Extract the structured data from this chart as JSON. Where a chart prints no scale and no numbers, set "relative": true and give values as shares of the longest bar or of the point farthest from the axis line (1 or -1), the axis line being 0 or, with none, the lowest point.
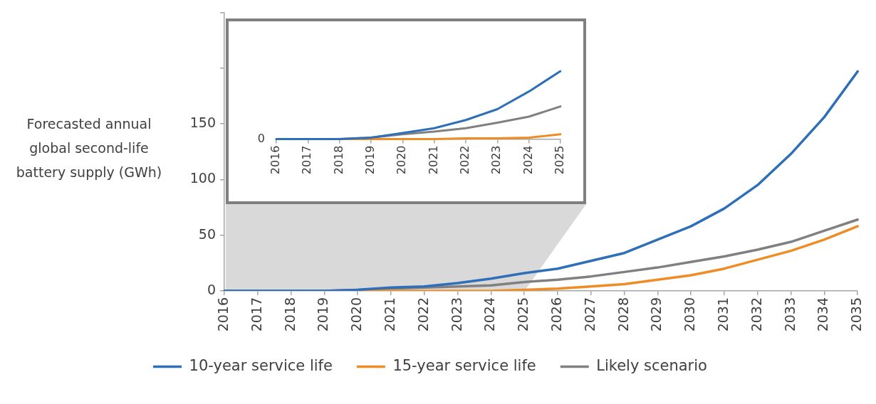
{
  "chart_data": [
    {
      "type": "line",
      "ylabel": "Forecasted annual global second-life battery supply (GWh)",
      "categories": [
        "2016",
        "2017",
        "2018",
        "2019",
        "2020",
        "2021",
        "2022",
        "2023",
        "2024",
        "2025",
        "2026",
        "2027",
        "2028",
        "2029",
        "2030",
        "2031",
        "2032",
        "2033",
        "2034",
        "2035"
      ],
      "series": [
        {
          "name": "10-year service life",
          "color": "#2e6fb7",
          "values": [
            0,
            0,
            0,
            0,
            1,
            3,
            4,
            7,
            11,
            16,
            20,
            27,
            34,
            46,
            58,
            74,
            95,
            123,
            156,
            197
          ]
        },
        {
          "name": "15-year service life",
          "color": "#ee8c25",
          "values": [
            null,
            null,
            null,
            0,
            0,
            0,
            0,
            0,
            0,
            1,
            2,
            4,
            6,
            10,
            14,
            20,
            28,
            36,
            46,
            58
          ]
        },
        {
          "name": "Likely scenario",
          "color": "#808080",
          "values": [
            0,
            0,
            0,
            0,
            1,
            2,
            3,
            4,
            5,
            8,
            10,
            13,
            17,
            21,
            26,
            31,
            37,
            44,
            54,
            64
          ]
        }
      ],
      "ylim": [
        0,
        250
      ],
      "yticks": [
        0,
        50,
        100,
        150,
        {
          "value": 200,
          "label": null
        },
        {
          "value": 250,
          "label": null
        }
      ],
      "grid": false,
      "legend": "bottom",
      "marker": "none"
    },
    {
      "type": "line",
      "relative": true,
      "categories": [
        "2016",
        "2017",
        "2018",
        "2019",
        "2020",
        "2021",
        "2022",
        "2023",
        "2024",
        "2025"
      ],
      "series": [
        {
          "color": "#2e6fb7",
          "values": [
            0,
            0,
            0,
            0.02,
            0.09,
            0.16,
            0.28,
            0.44,
            0.7,
            1
          ]
        },
        {
          "color": "#ee8c25",
          "values": [
            0,
            0,
            0,
            0,
            0,
            0,
            0.01,
            0.01,
            0.02,
            0.07
          ]
        },
        {
          "color": "#808080",
          "values": [
            0,
            0,
            0,
            0.02,
            0.07,
            0.11,
            0.16,
            0.24,
            0.33,
            0.48
          ]
        }
      ],
      "annotations": [
        "0"
      ],
      "grid": false,
      "legend": false,
      "marker": "none"
    }
  ]
}
